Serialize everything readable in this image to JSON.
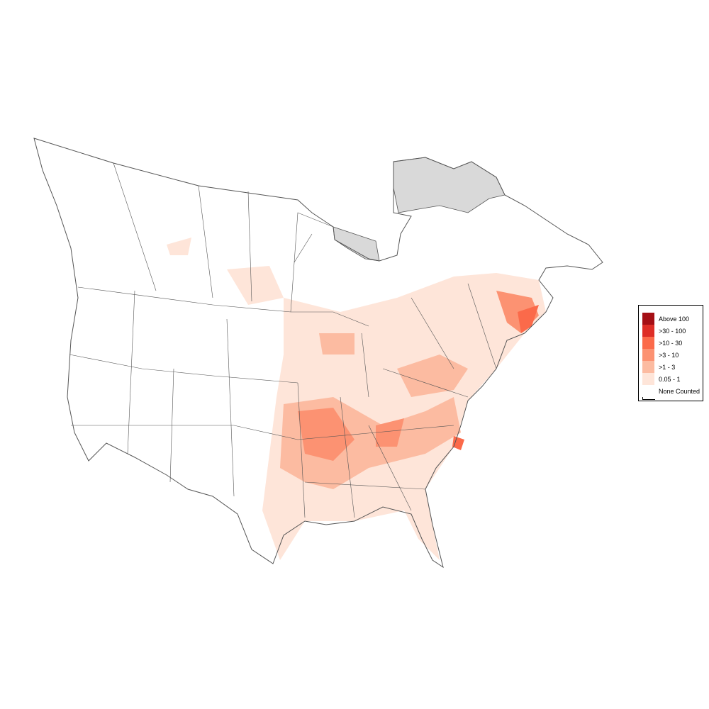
{
  "legend": {
    "items": [
      {
        "label": "Above 100",
        "color": "#a50f15"
      },
      {
        "label": ">30 - 100",
        "color": "#de2d26"
      },
      {
        "label": ">10 - 30",
        "color": "#fb6a4a"
      },
      {
        "label": ">3 - 10",
        "color": "#fc9272"
      },
      {
        "label": ">1 - 3",
        "color": "#fcbba1"
      },
      {
        "label": "0.05 - 1",
        "color": "#fee5d9"
      },
      {
        "label": "None Counted",
        "color": "#ffffff"
      }
    ]
  },
  "colors": {
    "outline": "#555555",
    "no_data": "#d9d9d9"
  }
}
